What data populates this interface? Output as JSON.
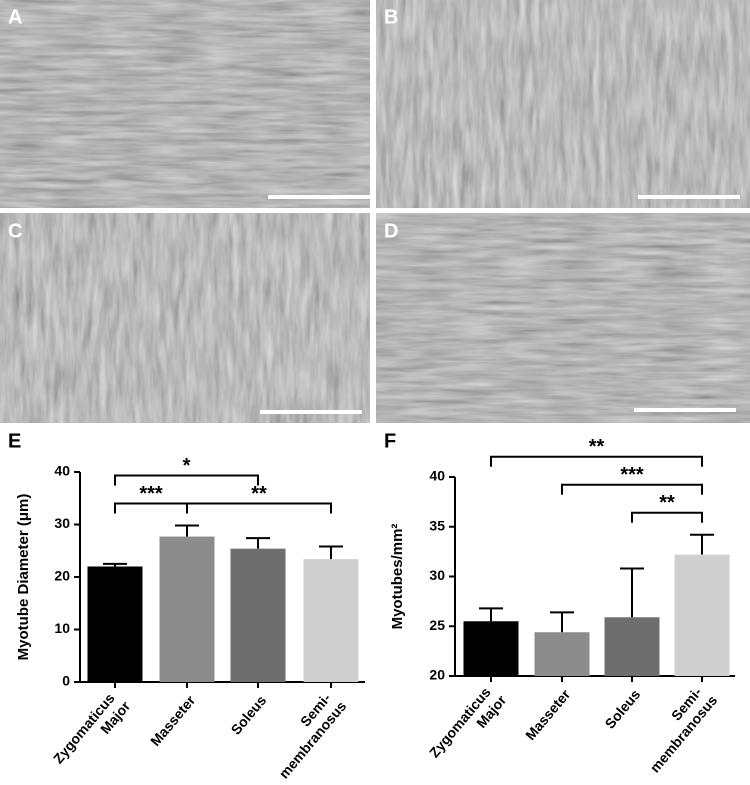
{
  "image_panels": [
    "A",
    "B",
    "C",
    "D"
  ],
  "chart_data": [
    {
      "type": "bar",
      "panel_label": "E",
      "ylabel": "Myotube Diameter (μm)",
      "categories": [
        "Zygomaticus Major",
        "Masseter",
        "Soleus",
        "Semi- membranosus"
      ],
      "values": [
        22,
        27.7,
        25.4,
        23.4
      ],
      "errors": [
        0.5,
        2.1,
        2.0,
        2.4
      ],
      "colors": [
        "#000000",
        "#8c8c8c",
        "#6e6e6e",
        "#cfcfcf"
      ],
      "ylim": [
        0,
        40
      ],
      "yticks": [
        0,
        10,
        20,
        30,
        40
      ],
      "significance": [
        {
          "from": 0,
          "to": 1,
          "label": "***"
        },
        {
          "from": 1,
          "to": 3,
          "label": "**"
        },
        {
          "from": 0,
          "to": 2,
          "label": "*"
        }
      ]
    },
    {
      "type": "bar",
      "panel_label": "F",
      "ylabel": "Myotubes/mm²",
      "categories": [
        "Zygomaticus Major",
        "Masseter",
        "Soleus",
        "Semi- membranosus"
      ],
      "values": [
        25.5,
        24.4,
        25.9,
        32.2
      ],
      "errors": [
        1.3,
        2.0,
        4.9,
        2.0
      ],
      "colors": [
        "#000000",
        "#8c8c8c",
        "#6e6e6e",
        "#cfcfcf"
      ],
      "ylim": [
        20,
        40
      ],
      "yticks": [
        20,
        25,
        30,
        35,
        40
      ],
      "significance": [
        {
          "from": 2,
          "to": 3,
          "label": "**"
        },
        {
          "from": 1,
          "to": 3,
          "label": "***"
        },
        {
          "from": 0,
          "to": 3,
          "label": "**"
        }
      ]
    }
  ]
}
